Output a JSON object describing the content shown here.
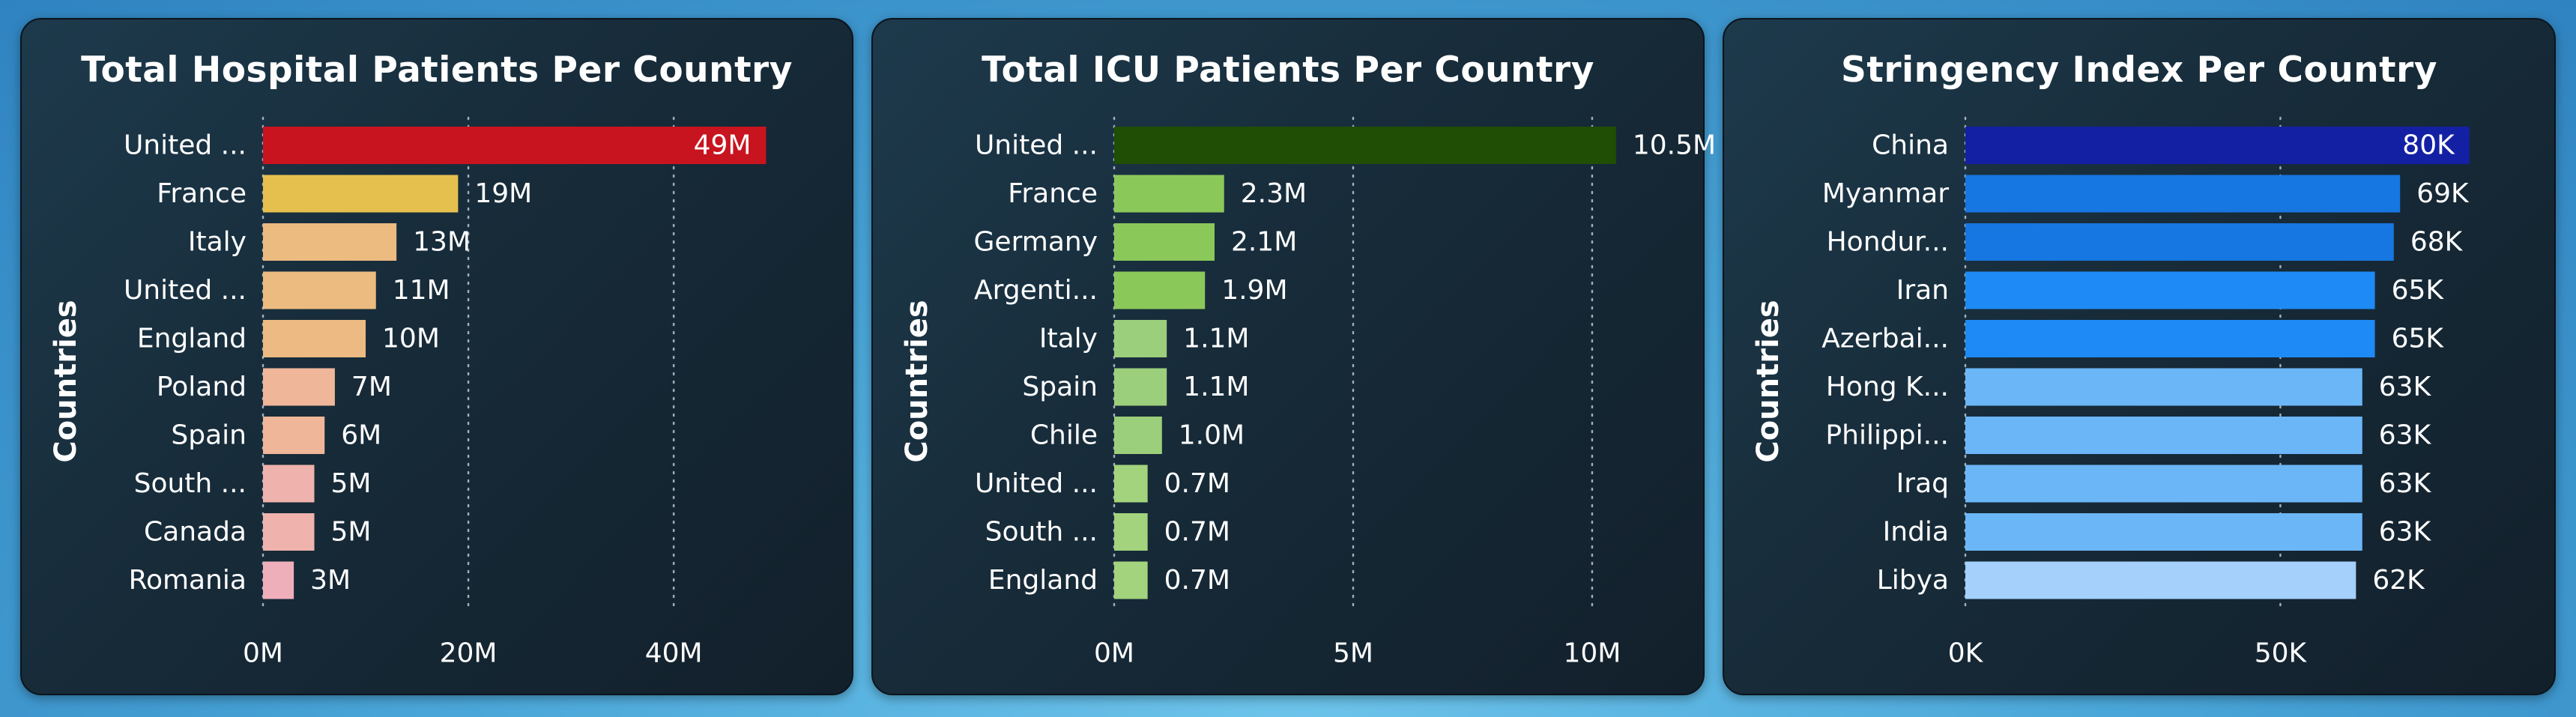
{
  "chart_data": [
    {
      "type": "bar",
      "orientation": "horizontal",
      "title": "Total Hospital Patients Per Country",
      "ylabel": "Countries",
      "categories": [
        "United ...",
        "France",
        "Italy",
        "United ...",
        "England",
        "Poland",
        "Spain",
        "South ...",
        "Canada",
        "Romania"
      ],
      "values": [
        49,
        19,
        13,
        11,
        10,
        7,
        6,
        5,
        5,
        3
      ],
      "value_labels": [
        "49M",
        "19M",
        "13M",
        "11M",
        "10M",
        "7M",
        "6M",
        "5M",
        "5M",
        "3M"
      ],
      "xlim": [
        0,
        54
      ],
      "x_ticks": [
        0,
        20,
        40
      ],
      "x_tick_labels": [
        "0M",
        "20M",
        "40M"
      ],
      "colors": [
        "#c8141f",
        "#e6c04f",
        "#ecbb80",
        "#ecbb80",
        "#ecba82",
        "#efb69a",
        "#efb69a",
        "#efb2ac",
        "#efb2ac",
        "#eeafbb"
      ],
      "grid": true
    },
    {
      "type": "bar",
      "orientation": "horizontal",
      "title": "Total ICU Patients Per Country",
      "ylabel": "Countries",
      "categories": [
        "United ...",
        "France",
        "Germany",
        "Argenti...",
        "Italy",
        "Spain",
        "Chile",
        "United ...",
        "South ...",
        "England"
      ],
      "values": [
        10.5,
        2.3,
        2.1,
        1.9,
        1.1,
        1.1,
        1.0,
        0.7,
        0.7,
        0.7
      ],
      "value_labels": [
        "10.5M",
        "2.3M",
        "2.1M",
        "1.9M",
        "1.1M",
        "1.1M",
        "1.0M",
        "0.7M",
        "0.7M",
        "0.7M"
      ],
      "xlim": [
        0,
        11.6
      ],
      "x_ticks": [
        0,
        5,
        10
      ],
      "x_tick_labels": [
        "0M",
        "5M",
        "10M"
      ],
      "colors": [
        "#1f4e04",
        "#8bc85a",
        "#8bc85a",
        "#8bc85a",
        "#9ccf7b",
        "#9ccf7b",
        "#9ccf7b",
        "#a3d37d",
        "#a3d37d",
        "#a3d37d"
      ],
      "grid": true
    },
    {
      "type": "bar",
      "orientation": "horizontal",
      "title": "Stringency Index Per Country",
      "ylabel": "Countries",
      "categories": [
        "China",
        "Myanmar",
        "Hondur...",
        "Iran",
        "Azerbai...",
        "Hong K...",
        "Philippi...",
        "Iraq",
        "India",
        "Libya"
      ],
      "values": [
        80,
        69,
        68,
        65,
        65,
        63,
        63,
        63,
        63,
        62
      ],
      "value_labels": [
        "80K",
        "69K",
        "68K",
        "65K",
        "65K",
        "63K",
        "63K",
        "63K",
        "63K",
        "62K"
      ],
      "xlim": [
        0,
        88
      ],
      "x_ticks": [
        0,
        50
      ],
      "x_tick_labels": [
        "0K",
        "50K"
      ],
      "colors": [
        "#1420a4",
        "#1676e2",
        "#1676e2",
        "#1e8af5",
        "#1e8af5",
        "#6bb6f7",
        "#6bb6f7",
        "#6bb6f7",
        "#6bb6f7",
        "#a4d0fb"
      ],
      "grid": true
    }
  ]
}
